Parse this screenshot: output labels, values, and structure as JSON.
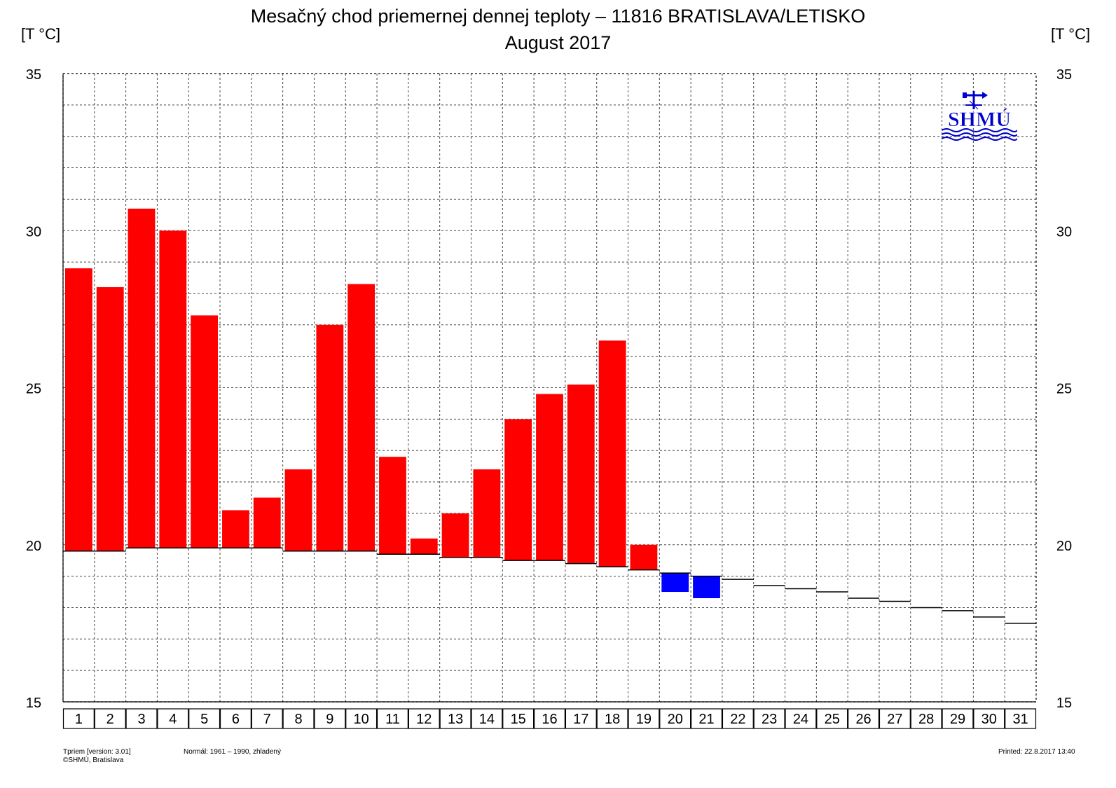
{
  "header": {
    "title": "Mesačný chod priemernej dennej teploty – 11816 BRATISLAVA/LETISKO",
    "subtitle": "August 2017",
    "unit_left": "[T °C]",
    "unit_right": "[T °C]"
  },
  "logo": {
    "text": "SHMÚ",
    "icon": "shmu-logo-icon"
  },
  "footer": {
    "line1": "Tpriem [version: 3.01]",
    "line2": "©SHMÚ, Bratislava",
    "normal": "Normál: 1961 – 1990, zhladený",
    "printed": "Printed: 22.8.2017  13:40"
  },
  "colors": {
    "above_normal": "#ff0000",
    "below_normal": "#0000ff",
    "normal_line": "#000000",
    "grid": "#444444"
  },
  "chart_data": {
    "type": "bar",
    "categories": [
      "1",
      "2",
      "3",
      "4",
      "5",
      "6",
      "7",
      "8",
      "9",
      "10",
      "11",
      "12",
      "13",
      "14",
      "15",
      "16",
      "17",
      "18",
      "19",
      "20",
      "21",
      "22",
      "23",
      "24",
      "25",
      "26",
      "27",
      "28",
      "29",
      "30",
      "31"
    ],
    "series": [
      {
        "values": [
          28.8,
          28.2,
          30.7,
          30.0,
          27.3,
          21.1,
          21.5,
          22.4,
          27.0,
          28.3,
          22.8,
          20.2,
          21.0,
          22.4,
          24.0,
          24.8,
          25.1,
          26.5,
          20.0,
          18.5,
          18.3,
          null,
          null,
          null,
          null,
          null,
          null,
          null,
          null,
          null,
          null
        ]
      },
      {
        "values": [
          19.8,
          19.8,
          19.9,
          19.9,
          19.9,
          19.9,
          19.9,
          19.8,
          19.8,
          19.8,
          19.7,
          19.7,
          19.6,
          19.6,
          19.5,
          19.5,
          19.4,
          19.3,
          19.2,
          19.1,
          19.0,
          18.9,
          18.7,
          18.6,
          18.5,
          18.3,
          18.2,
          18.0,
          17.9,
          17.7,
          17.5
        ]
      }
    ],
    "ylim": [
      15,
      35
    ],
    "yticks": [
      15,
      20,
      25,
      30,
      35
    ],
    "grid": true
  }
}
